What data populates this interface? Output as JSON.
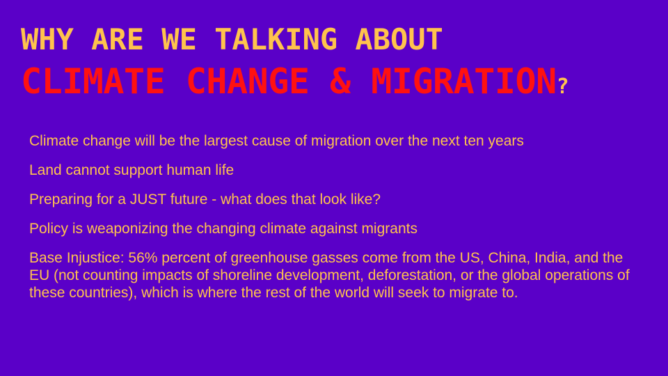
{
  "slide": {
    "title": {
      "line1": "WHY ARE WE TALKING ABOUT",
      "line2_highlight": "CLIMATE CHANGE & MIGRATION",
      "line2_suffix": "?"
    },
    "bullets": [
      "Climate change will be the largest cause of migration over the next ten years",
      "Land cannot support human life",
      "Preparing for a JUST future - what does that look like?",
      "Policy is weaponizing the changing climate against migrants",
      "Base Injustice: 56% percent of greenhouse gasses come from the US, China, India, and the EU (not counting impacts of shoreline development, deforestation, or the global operations of these countries), which is where the rest of the world will seek to migrate to."
    ]
  },
  "colors": {
    "background": "#5a00c8",
    "accent_yellow": "#ffc34d",
    "accent_red": "#ff1111"
  }
}
